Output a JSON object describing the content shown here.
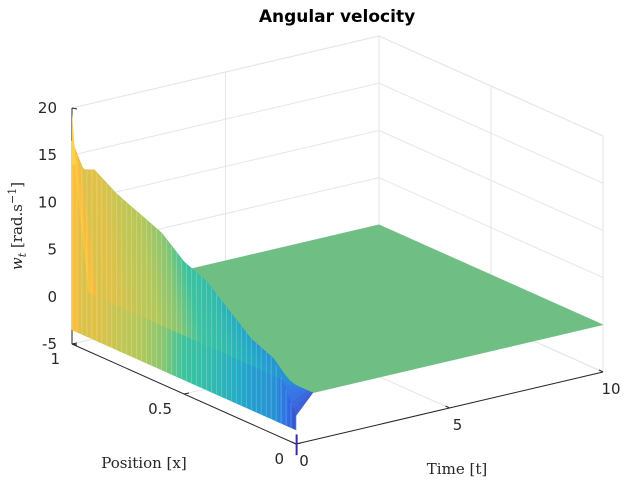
{
  "chart_data": {
    "type": "surface",
    "title": "Angular velocity",
    "xlabel": "Time [t]",
    "ylabel": "Position [x]",
    "zlabel_parts": {
      "base": "w",
      "sub": "t",
      "bracket_open": " [rad.s",
      "sup": "−1",
      "bracket_close": "]"
    },
    "xlim": [
      0,
      10
    ],
    "ylim": [
      0,
      1
    ],
    "zlim": [
      -5,
      20
    ],
    "xticks": [
      {
        "v": 0,
        "label": "0"
      },
      {
        "v": 5,
        "label": "5"
      },
      {
        "v": 10,
        "label": "10"
      }
    ],
    "yticks": [
      {
        "v": 0,
        "label": "0"
      },
      {
        "v": 0.5,
        "label": "0.5"
      },
      {
        "v": 1,
        "label": "1"
      }
    ],
    "zticks": [
      {
        "v": -5,
        "label": "-5"
      },
      {
        "v": 0,
        "label": "0"
      },
      {
        "v": 5,
        "label": "5"
      },
      {
        "v": 10,
        "label": "10"
      },
      {
        "v": 15,
        "label": "15"
      },
      {
        "v": 20,
        "label": "20"
      }
    ],
    "grid": true,
    "colormap": "parula",
    "colors": {
      "plateau": "#6fbf85",
      "low": "#3e26a8",
      "mid": "#22b5c5",
      "high": "#fbbc3c"
    },
    "steady_value": 0,
    "surface_at_t0": {
      "x": [
        0,
        0.05,
        0.1,
        0.2,
        0.3,
        0.4,
        0.5,
        0.6,
        0.7,
        0.8,
        0.9,
        0.95,
        1.0
      ],
      "w": [
        -2.0,
        0.5,
        3,
        4,
        6,
        8,
        9,
        11,
        12,
        13,
        14.5,
        14,
        16.5
      ]
    }
  }
}
